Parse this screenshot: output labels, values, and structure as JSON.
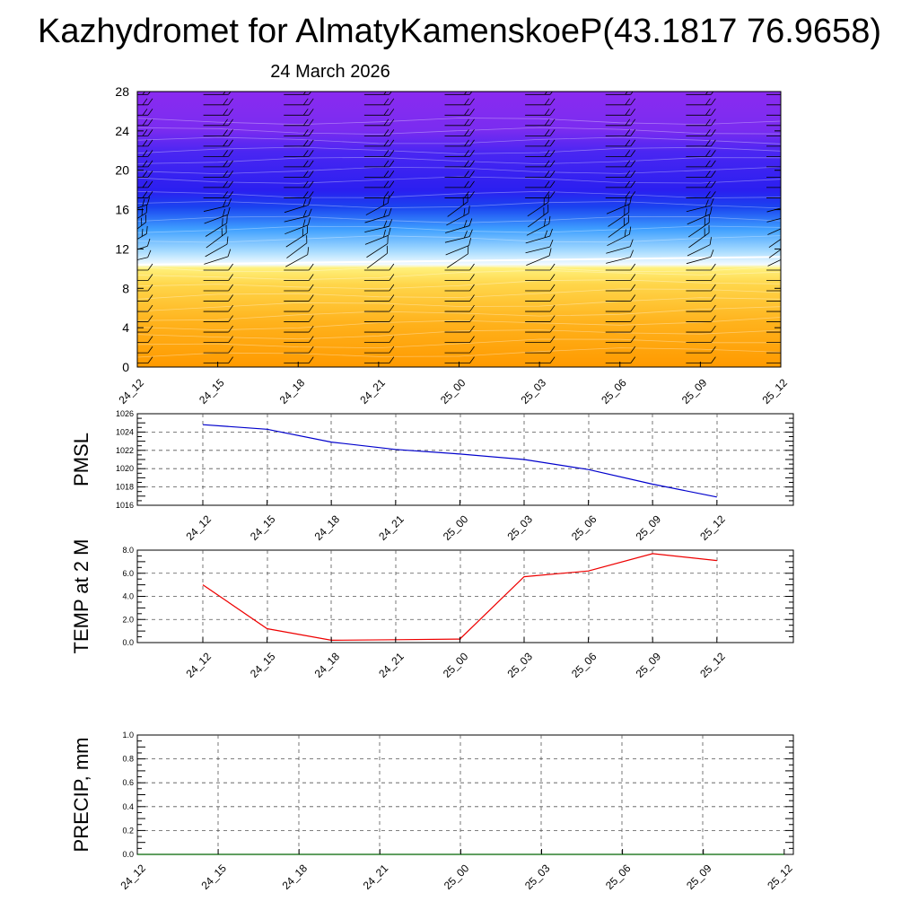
{
  "page": {
    "title": "Kazhydromet for AlmatyKamenskoeP(43.1817 76.9658)",
    "subtitle": "24 March 2026"
  },
  "chart_data": [
    {
      "type": "heatmap",
      "name": "time-height cross section",
      "x_categories": [
        "24_12",
        "24_15",
        "24_18",
        "24_21",
        "25_00",
        "25_03",
        "25_06",
        "25_09",
        "25_12"
      ],
      "y_ticks": [
        0,
        4,
        8,
        12,
        16,
        20,
        24,
        28
      ],
      "ylim": [
        0,
        28
      ],
      "colors": {
        "low": "#ff9a00",
        "mid_low": "#ffe860",
        "freeze": "#e8f6ff",
        "mid_high": "#2f8cff",
        "high": "#1c1cf0",
        "top": "#8a2bf0"
      },
      "boundary_level_start": 10.4,
      "boundary_level_end": 11.2,
      "wind_barbs": true
    },
    {
      "type": "line",
      "ylabel": "PMSL",
      "categories": [
        "24_12",
        "24_15",
        "24_18",
        "24_21",
        "25_00",
        "25_03",
        "25_06",
        "25_09",
        "25_12"
      ],
      "values": [
        1024.8,
        1024.3,
        1022.9,
        1022.1,
        1021.6,
        1021.0,
        1019.9,
        1018.3,
        1016.9
      ],
      "ylim": [
        1016,
        1026
      ],
      "y_ticks": [
        "1016",
        "1018",
        "1020",
        "1022",
        "1024",
        "1026"
      ],
      "color": "#0000cc",
      "grid": true
    },
    {
      "type": "line",
      "ylabel": "TEMP at 2 M",
      "categories": [
        "24_12",
        "24_15",
        "24_18",
        "24_21",
        "25_00",
        "25_03",
        "25_06",
        "25_09",
        "25_12"
      ],
      "values": [
        5.0,
        1.2,
        0.2,
        0.25,
        0.3,
        5.7,
        6.2,
        7.7,
        7.1
      ],
      "ylim": [
        0,
        8
      ],
      "y_ticks": [
        "0.0",
        "2.0",
        "4.0",
        "6.0",
        "8.0"
      ],
      "color": "#ee0000",
      "grid": true
    },
    {
      "type": "line",
      "ylabel": "PRECIP, mm",
      "categories": [
        "24_12",
        "24_15",
        "24_18",
        "24_21",
        "25_00",
        "25_03",
        "25_06",
        "25_09",
        "25_12"
      ],
      "values": [
        0,
        0,
        0,
        0,
        0,
        0,
        0,
        0,
        0
      ],
      "ylim": [
        0,
        1
      ],
      "y_ticks": [
        "0.0",
        "0.2",
        "0.4",
        "0.6",
        "0.8",
        "1.0"
      ],
      "color": "#006600",
      "grid": true
    }
  ]
}
